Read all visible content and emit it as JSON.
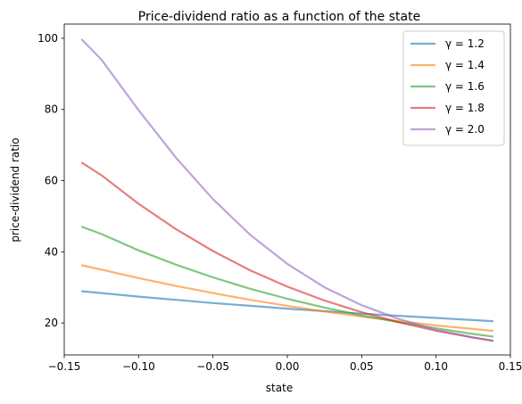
{
  "chart_data": {
    "type": "line",
    "title": "Price-dividend ratio as a function of the state",
    "xlabel": "state",
    "ylabel": "price-dividend ratio",
    "xlim": [
      -0.15,
      0.15
    ],
    "ylim": [
      11,
      104
    ],
    "xticks": [
      -0.15,
      -0.1,
      -0.05,
      0.0,
      0.05,
      0.1,
      0.15
    ],
    "xtick_labels": [
      "−0.15",
      "−0.10",
      "−0.05",
      "0.00",
      "0.05",
      "0.10",
      "0.15"
    ],
    "yticks": [
      20,
      40,
      60,
      80,
      100
    ],
    "ytick_labels": [
      "20",
      "40",
      "60",
      "80",
      "100"
    ],
    "grid": false,
    "legend_position": "top-right",
    "x": [
      -0.138,
      -0.125,
      -0.1,
      -0.075,
      -0.05,
      -0.025,
      0.0,
      0.025,
      0.05,
      0.075,
      0.1,
      0.125,
      0.138
    ],
    "series": [
      {
        "name": "γ = 1.2",
        "color": "#1f77b4",
        "values": [
          28.9,
          28.4,
          27.4,
          26.5,
          25.6,
          24.8,
          24.0,
          23.3,
          22.6,
          22.0,
          21.4,
          20.8,
          20.5
        ]
      },
      {
        "name": "γ = 1.4",
        "color": "#ff7f0e",
        "values": [
          36.2,
          35.0,
          32.6,
          30.4,
          28.4,
          26.5,
          24.8,
          23.2,
          21.8,
          20.5,
          19.3,
          18.3,
          17.8
        ]
      },
      {
        "name": "γ = 1.6",
        "color": "#2ca02c",
        "values": [
          47.0,
          45.0,
          40.4,
          36.4,
          32.8,
          29.6,
          26.8,
          24.3,
          22.1,
          20.2,
          18.5,
          16.9,
          16.2
        ]
      },
      {
        "name": "γ = 1.8",
        "color": "#d62728",
        "values": [
          65.0,
          61.5,
          53.5,
          46.4,
          40.2,
          34.8,
          30.2,
          26.3,
          23.0,
          20.2,
          17.8,
          15.9,
          15.0
        ]
      },
      {
        "name": "γ = 2.0",
        "color": "#9467bd",
        "values": [
          99.6,
          94.0,
          79.8,
          66.5,
          54.8,
          44.8,
          36.6,
          30.0,
          25.0,
          21.1,
          18.1,
          15.9,
          15.0
        ]
      }
    ]
  }
}
